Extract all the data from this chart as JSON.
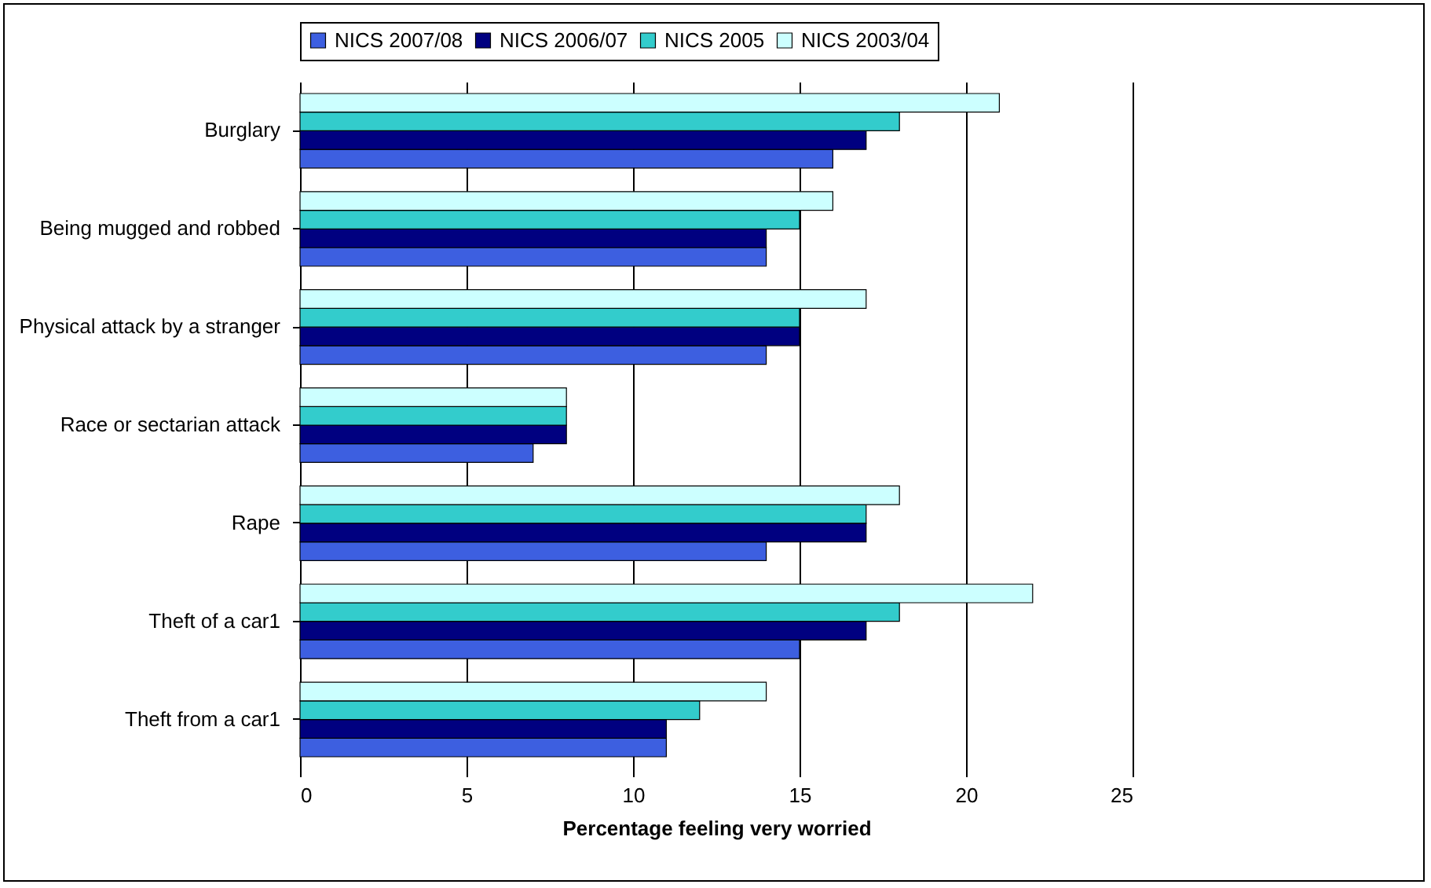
{
  "chart_data": {
    "type": "bar",
    "orientation": "horizontal",
    "xlabel": "Percentage feeling very worried",
    "categories": [
      "Burglary",
      "Being mugged and robbed",
      "Physical attack by a stranger",
      "Race or sectarian attack",
      "Rape",
      "Theft of a car1",
      "Theft from a car1"
    ],
    "series": [
      {
        "name": "NICS 2007/08",
        "color": "#3d5fe0",
        "values": [
          16,
          14,
          14,
          7,
          14,
          15,
          11
        ]
      },
      {
        "name": "NICS 2006/07",
        "color": "#000080",
        "values": [
          17,
          14,
          15,
          8,
          17,
          17,
          11
        ]
      },
      {
        "name": "NICS 2005",
        "color": "#33cccc",
        "values": [
          18,
          15,
          15,
          8,
          17,
          18,
          12
        ]
      },
      {
        "name": "NICS 2003/04",
        "color": "#ccffff",
        "values": [
          21,
          16,
          17,
          8,
          18,
          22,
          14
        ]
      }
    ],
    "xlim": [
      0,
      25
    ],
    "xticks": [
      0,
      5,
      10,
      15,
      20,
      25
    ],
    "grid": "x",
    "legend": "top"
  }
}
